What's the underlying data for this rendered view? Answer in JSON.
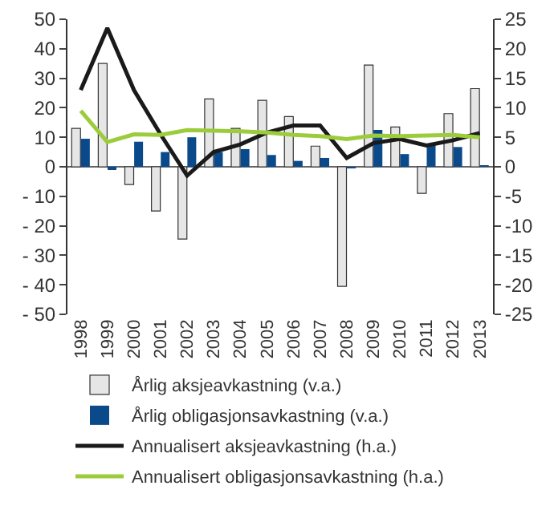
{
  "chart_data": {
    "type": "bar",
    "categories": [
      "1998",
      "1999",
      "2000",
      "2001",
      "2002",
      "2003",
      "2004",
      "2005",
      "2006",
      "2007",
      "2008",
      "2009",
      "2010",
      "2011",
      "2012",
      "2013"
    ],
    "series": [
      {
        "name": "Årlig aksjeavkastning (v.a.)",
        "color": "#e6e6e6",
        "values": [
          13,
          35,
          -6,
          -15,
          -24.5,
          23,
          13,
          22.5,
          17,
          7,
          -40.5,
          34.5,
          13.5,
          -9,
          18,
          26.5
        ]
      },
      {
        "name": "Årlig obligasjonsavkastning (v.a.)",
        "color": "#0b4a8a",
        "values": [
          9.5,
          -1,
          8.5,
          5,
          10,
          5,
          6,
          4,
          2,
          3,
          -0.5,
          12.5,
          4.3,
          7.5,
          6.7,
          0.3
        ]
      },
      {
        "name": "Annualisert aksjeavkastning (h.a.)",
        "color": "#1a1a1a",
        "type": "line",
        "axis": "y2",
        "values": [
          13,
          23.5,
          13,
          5.5,
          -1.5,
          2.5,
          3.8,
          5.8,
          7,
          7,
          1.5,
          4,
          4.7,
          3.6,
          4.5,
          5.7
        ]
      },
      {
        "name": "Annualisert obligasjonsavkastning (h.a.)",
        "color": "#9ccc3c",
        "type": "line",
        "axis": "y2",
        "values": [
          9.5,
          4.2,
          5.5,
          5.4,
          6.2,
          6.1,
          6.0,
          5.8,
          5.4,
          5.2,
          4.7,
          5.3,
          5.2,
          5.3,
          5.4,
          5.0
        ]
      }
    ],
    "ylim": [
      -50,
      50
    ],
    "yticks": [
      {
        "value": -50,
        "label": "- 50"
      },
      {
        "value": -40,
        "label": "- 40"
      },
      {
        "value": -30,
        "label": "- 30"
      },
      {
        "value": -20,
        "label": "- 20"
      },
      {
        "value": -10,
        "label": "- 10"
      },
      0,
      10,
      20,
      30,
      40,
      50
    ],
    "y2lim": [
      -25,
      25
    ],
    "y2ticks": [
      -25,
      -20,
      -15,
      -10,
      -5,
      0,
      5,
      10,
      15,
      20,
      25
    ],
    "ref_lines": [
      {
        "axis": "y",
        "value": 0,
        "color": "#333333"
      }
    ],
    "legend": "bottom left",
    "grid": false,
    "marker": "none",
    "line_style": "solid"
  }
}
